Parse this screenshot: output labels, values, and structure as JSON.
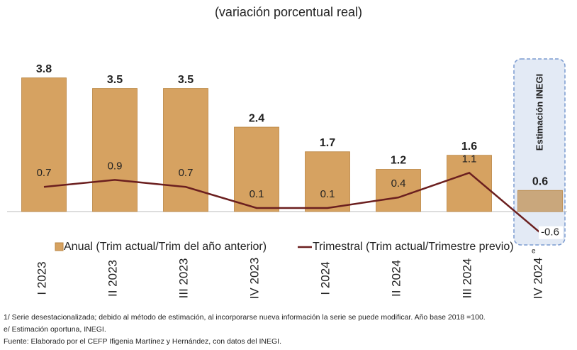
{
  "chart_data": {
    "type": "bar_line",
    "title": "(variación porcentual real)",
    "categories": [
      "I 2023",
      "II 2023",
      "III 2023",
      "IV 2023",
      "I 2024",
      "II 2024",
      "III 2024",
      "IV 2024"
    ],
    "series": [
      {
        "name": "Anual (Trim actual/Trim del año anterior)",
        "kind": "bar",
        "color": "#d6a261",
        "bar_colors": [
          "#d6a261",
          "#d6a261",
          "#d6a261",
          "#d6a261",
          "#d6a261",
          "#d6a261",
          "#d6a261",
          "#c9a77c"
        ],
        "values": [
          3.8,
          3.5,
          3.5,
          2.4,
          1.7,
          1.2,
          1.6,
          0.6
        ]
      },
      {
        "name": "Trimestral (Trim actual/Trimestre previo)",
        "kind": "line",
        "color": "#6b1f1f",
        "values": [
          0.7,
          0.9,
          0.7,
          0.1,
          0.1,
          0.4,
          1.1,
          -0.6
        ]
      }
    ],
    "ylim": [
      -1,
      4.5
    ],
    "estimate_box": "Estimación INEGI",
    "estimate_mark": "e",
    "footnotes": [
      "1/ Serie desestacionalizada; debido al método de estimación, al incorporarse nueva información la serie se puede modificar. Año base 2018 =100.",
      "e/ Estimación oportuna, INEGI.",
      "Fuente: Elaborado por el CEFP Ifigenia Martínez y Hernández, con datos del INEGI."
    ]
  }
}
